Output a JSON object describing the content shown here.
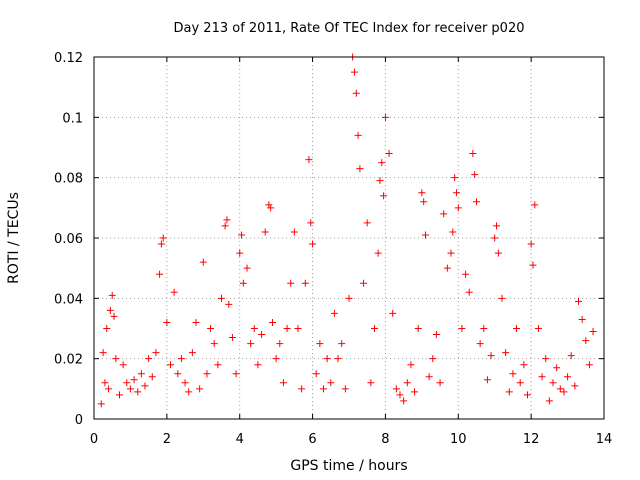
{
  "chart_data": {
    "type": "scatter",
    "title": "Day 213 of 2011, Rate Of TEC Index for receiver p020",
    "xlabel": "GPS time / hours",
    "ylabel": "ROTI / TECUs",
    "xlim": [
      0,
      14
    ],
    "ylim": [
      0,
      0.12
    ],
    "xticks": [
      "0",
      "2",
      "4",
      "6",
      "8",
      "10",
      "12",
      "14"
    ],
    "yticks": [
      "0",
      "0.02",
      "0.04",
      "0.06",
      "0.08",
      "0.1",
      "0.12"
    ],
    "grid": true,
    "marker": "plus",
    "color": "#ff0000",
    "series": [
      {
        "x": [
          0.2,
          0.25,
          0.3,
          0.35,
          0.4,
          0.45,
          0.5,
          0.55,
          0.6,
          0.7,
          0.8,
          0.9,
          1.0,
          1.1,
          1.2,
          1.3,
          1.4,
          1.5,
          1.6,
          1.7,
          1.8,
          1.85,
          1.9,
          2.0,
          2.1,
          2.2,
          2.3,
          2.4,
          2.5,
          2.6,
          2.7,
          2.8,
          2.9,
          3.0,
          3.1,
          3.2,
          3.3,
          3.4,
          3.5,
          3.6,
          3.65,
          3.7,
          3.8,
          3.9,
          4.0,
          4.05,
          4.1,
          4.2,
          4.3,
          4.4,
          4.5,
          4.6,
          4.7,
          4.8,
          4.85,
          4.9,
          5.0,
          5.1,
          5.2,
          5.3,
          5.4,
          5.5,
          5.6,
          5.7,
          5.8,
          5.9,
          5.95,
          6.0,
          6.1,
          6.2,
          6.3,
          6.4,
          6.5,
          6.6,
          6.7,
          6.8,
          6.9,
          7.0,
          7.1,
          7.15,
          7.2,
          7.25,
          7.3,
          7.4,
          7.5,
          7.6,
          7.7,
          7.8,
          7.85,
          7.9,
          7.95,
          8.0,
          8.1,
          8.2,
          8.3,
          8.4,
          8.5,
          8.6,
          8.7,
          8.8,
          8.9,
          9.0,
          9.05,
          9.1,
          9.2,
          9.3,
          9.4,
          9.5,
          9.6,
          9.7,
          9.8,
          9.85,
          9.9,
          9.95,
          10.0,
          10.1,
          10.2,
          10.3,
          10.4,
          10.45,
          10.5,
          10.6,
          10.7,
          10.8,
          10.9,
          11.0,
          11.05,
          11.1,
          11.2,
          11.3,
          11.4,
          11.5,
          11.6,
          11.7,
          11.8,
          11.9,
          12.0,
          12.05,
          12.1,
          12.2,
          12.3,
          12.4,
          12.5,
          12.6,
          12.7,
          12.8,
          12.9,
          13.0,
          13.1,
          13.2,
          13.3,
          13.4,
          13.5,
          13.6,
          13.7
        ],
        "y": [
          0.005,
          0.022,
          0.012,
          0.03,
          0.01,
          0.036,
          0.041,
          0.034,
          0.02,
          0.008,
          0.018,
          0.012,
          0.01,
          0.013,
          0.009,
          0.015,
          0.011,
          0.02,
          0.014,
          0.022,
          0.048,
          0.058,
          0.06,
          0.032,
          0.018,
          0.042,
          0.015,
          0.02,
          0.012,
          0.009,
          0.022,
          0.032,
          0.01,
          0.052,
          0.015,
          0.03,
          0.025,
          0.018,
          0.04,
          0.064,
          0.066,
          0.038,
          0.027,
          0.015,
          0.055,
          0.061,
          0.045,
          0.05,
          0.025,
          0.03,
          0.018,
          0.028,
          0.062,
          0.071,
          0.07,
          0.032,
          0.02,
          0.025,
          0.012,
          0.03,
          0.045,
          0.062,
          0.03,
          0.01,
          0.045,
          0.086,
          0.065,
          0.058,
          0.015,
          0.025,
          0.01,
          0.02,
          0.012,
          0.035,
          0.02,
          0.025,
          0.01,
          0.04,
          0.12,
          0.115,
          0.108,
          0.094,
          0.083,
          0.045,
          0.065,
          0.012,
          0.03,
          0.055,
          0.079,
          0.085,
          0.074,
          0.1,
          0.088,
          0.035,
          0.01,
          0.008,
          0.006,
          0.012,
          0.018,
          0.009,
          0.03,
          0.075,
          0.072,
          0.061,
          0.014,
          0.02,
          0.028,
          0.012,
          0.068,
          0.05,
          0.055,
          0.062,
          0.08,
          0.075,
          0.07,
          0.03,
          0.048,
          0.042,
          0.088,
          0.081,
          0.072,
          0.025,
          0.03,
          0.013,
          0.021,
          0.06,
          0.064,
          0.055,
          0.04,
          0.022,
          0.009,
          0.015,
          0.03,
          0.012,
          0.018,
          0.008,
          0.058,
          0.051,
          0.071,
          0.03,
          0.014,
          0.02,
          0.006,
          0.012,
          0.017,
          0.01,
          0.009,
          0.014,
          0.021,
          0.011,
          0.039,
          0.033,
          0.026,
          0.018,
          0.029
        ]
      }
    ]
  }
}
